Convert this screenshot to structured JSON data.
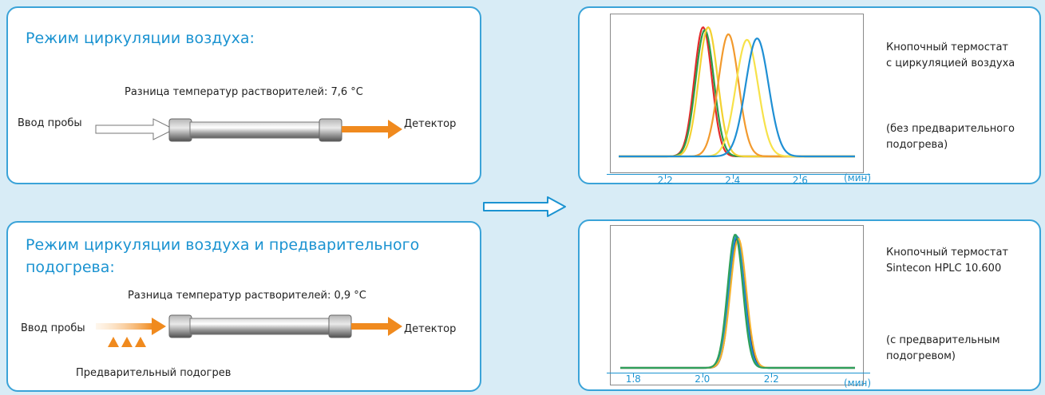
{
  "top_left": {
    "title": "Режим циркуляции воздуха:",
    "temp_diff": "Разница температур растворителей: 7,6 °C",
    "input_label": "Ввод пробы",
    "output_label": "Детектор"
  },
  "bottom_left": {
    "title_line1": "Режим циркуляции воздуха и предварительного",
    "title_line2": "подогрева:",
    "temp_diff": "Разница температур растворителей: 0,9 °C",
    "input_label": "Ввод пробы",
    "output_label": "Детектор",
    "preheat_label": "Предварительный подогрев"
  },
  "top_right": {
    "desc_line1": "Кнопочный термостат",
    "desc_line2": "с циркуляцией воздуха",
    "note_line1": "(без предварительного",
    "note_line2": "подогрева)"
  },
  "bottom_right": {
    "desc_line1": "Кнопочный термостат",
    "desc_line2": "Sintecon HPLC 10.600",
    "note_line1": "(с предварительным",
    "note_line2": "подогревом)"
  },
  "colors": {
    "accent_blue": "#1b93d1",
    "arrow_orange": "#f08a1e"
  },
  "chart_data": [
    {
      "type": "line",
      "x_unit": "(мин)",
      "x_ticks": [
        2.2,
        2.4,
        2.6
      ],
      "x_tick_labels": [
        "2.2",
        "2.4",
        "2.6"
      ],
      "xlim": [
        2.06,
        2.76
      ],
      "ylim": [
        0,
        1
      ],
      "grid": false,
      "series": [
        {
          "color": "#e32b2b",
          "shape": {
            "center": 2.31,
            "sigma": 0.026,
            "height": 0.93
          }
        },
        {
          "color": "#2a9d4a",
          "shape": {
            "center": 2.315,
            "sigma": 0.027,
            "height": 0.91
          }
        },
        {
          "color": "#f3d130",
          "shape": {
            "center": 2.325,
            "sigma": 0.028,
            "height": 0.93
          }
        },
        {
          "color": "#f29a2e",
          "shape": {
            "center": 2.385,
            "sigma": 0.03,
            "height": 0.88
          }
        },
        {
          "color": "#f7e24a",
          "shape": {
            "center": 2.44,
            "sigma": 0.033,
            "height": 0.84
          }
        },
        {
          "color": "#1f8fd4",
          "shape": {
            "center": 2.47,
            "sigma": 0.034,
            "height": 0.85
          }
        }
      ]
    },
    {
      "type": "line",
      "x_unit": "(мин)",
      "x_ticks": [
        1.8,
        2.0,
        2.2
      ],
      "x_tick_labels": [
        "1.8",
        "2.0",
        "2.2"
      ],
      "xlim": [
        1.76,
        2.44
      ],
      "ylim": [
        0,
        1
      ],
      "grid": false,
      "series": [
        {
          "color": "#2b2b6e",
          "shape": {
            "center": 2.1,
            "sigma": 0.022,
            "height": 0.94
          }
        },
        {
          "color": "#1f8fd4",
          "shape": {
            "center": 2.097,
            "sigma": 0.022,
            "height": 0.95
          }
        },
        {
          "color": "#f3b12e",
          "shape": {
            "center": 2.102,
            "sigma": 0.023,
            "height": 0.93
          }
        },
        {
          "color": "#2fa05a",
          "shape": {
            "center": 2.093,
            "sigma": 0.022,
            "height": 0.96
          }
        }
      ]
    }
  ]
}
